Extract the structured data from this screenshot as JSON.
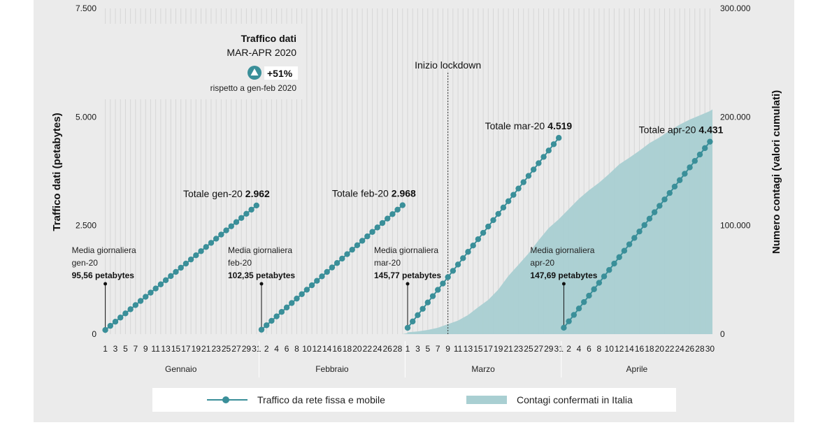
{
  "chart_data": {
    "type": "line+area",
    "y_left": {
      "label": "Traffico dati (petabytes)",
      "min": 0,
      "max": 7500,
      "ticks": [
        "0",
        "2.500",
        "5.000",
        "7.500"
      ],
      "tick_values": [
        0,
        2500,
        5000,
        7500
      ]
    },
    "y_right": {
      "label": "Numero contagi (valori cumulati)",
      "min": 0,
      "max": 300000,
      "ticks": [
        "0",
        "100.000",
        "200.000",
        "300.000"
      ],
      "tick_values": [
        0,
        100000,
        200000,
        300000
      ]
    },
    "months": [
      {
        "name": "Gennaio",
        "days": 31,
        "label_days": [
          1,
          3,
          5,
          7,
          9,
          11,
          13,
          15,
          17,
          19,
          21,
          23,
          25,
          27,
          29,
          31
        ],
        "start": 95.56,
        "end": 2962,
        "total_label": "Totale gen-20",
        "total_value": "2.962",
        "avg_label": "Media giornaliera",
        "avg_month": "gen-20",
        "avg_value": "95,56",
        "avg_unit": "petabytes"
      },
      {
        "name": "Febbraio",
        "days": 29,
        "label_days": [
          2,
          4,
          6,
          8,
          10,
          12,
          14,
          16,
          18,
          20,
          22,
          24,
          26,
          28
        ],
        "start": 102.35,
        "end": 2968,
        "total_label": "Totale feb-20",
        "total_value": "2.968",
        "avg_label": "Media giornaliera",
        "avg_month": "feb-20",
        "avg_value": "102,35",
        "avg_unit": "petabytes"
      },
      {
        "name": "Marzo",
        "days": 31,
        "label_days": [
          1,
          3,
          5,
          7,
          9,
          11,
          13,
          15,
          17,
          19,
          21,
          23,
          25,
          27,
          29,
          31
        ],
        "start": 145.77,
        "end": 4519,
        "total_label": "Totale mar-20",
        "total_value": "4.519",
        "avg_label": "Media giornaliera",
        "avg_month": "mar-20",
        "avg_value": "145,77",
        "avg_unit": "petabytes"
      },
      {
        "name": "Aprile",
        "days": 30,
        "label_days": [
          2,
          4,
          6,
          8,
          10,
          12,
          14,
          16,
          18,
          20,
          22,
          24,
          26,
          28,
          30
        ],
        "start": 147.69,
        "end": 4431,
        "total_label": "Totale apr-20",
        "total_value": "4.431",
        "avg_label": "Media giornaliera",
        "avg_month": "apr-20",
        "avg_value": "147,69",
        "avg_unit": "petabytes"
      }
    ],
    "contagi": {
      "name": "Contagi confermati in Italia",
      "points": [
        [
          "mar",
          1,
          1694
        ],
        [
          "mar",
          3,
          2502
        ],
        [
          "mar",
          5,
          3858
        ],
        [
          "mar",
          7,
          5883
        ],
        [
          "mar",
          9,
          9172
        ],
        [
          "mar",
          11,
          12462
        ],
        [
          "mar",
          13,
          17660
        ],
        [
          "mar",
          15,
          24747
        ],
        [
          "mar",
          17,
          31506
        ],
        [
          "mar",
          19,
          41035
        ],
        [
          "mar",
          21,
          53578
        ],
        [
          "mar",
          23,
          63927
        ],
        [
          "mar",
          25,
          74386
        ],
        [
          "mar",
          27,
          86498
        ],
        [
          "mar",
          29,
          97689
        ],
        [
          "mar",
          31,
          105792
        ],
        [
          "apr",
          2,
          115242
        ],
        [
          "apr",
          4,
          124632
        ],
        [
          "apr",
          6,
          132547
        ],
        [
          "apr",
          8,
          139422
        ],
        [
          "apr",
          10,
          147577
        ],
        [
          "apr",
          12,
          156363
        ],
        [
          "apr",
          14,
          162488
        ],
        [
          "apr",
          16,
          168941
        ],
        [
          "apr",
          18,
          175925
        ],
        [
          "apr",
          20,
          181228
        ],
        [
          "apr",
          22,
          187327
        ],
        [
          "apr",
          24,
          192994
        ],
        [
          "apr",
          26,
          197675
        ],
        [
          "apr",
          28,
          201505
        ],
        [
          "apr",
          30,
          205463
        ]
      ]
    },
    "lockdown": {
      "label": "Inizio lockdown",
      "month": "mar",
      "day": 9
    },
    "callout": {
      "title": "Traffico dati",
      "period": "MAR-APR 2020",
      "change": "+51%",
      "note": "rispetto a gen-feb 2020"
    },
    "legend": {
      "line": "Traffico da rete fissa e mobile",
      "area": "Contagi confermati in Italia"
    },
    "colors": {
      "line": "#3a8f99",
      "area": "#a9cfd2",
      "grid": "#d6d6d6",
      "panel": "#ebebeb"
    }
  }
}
